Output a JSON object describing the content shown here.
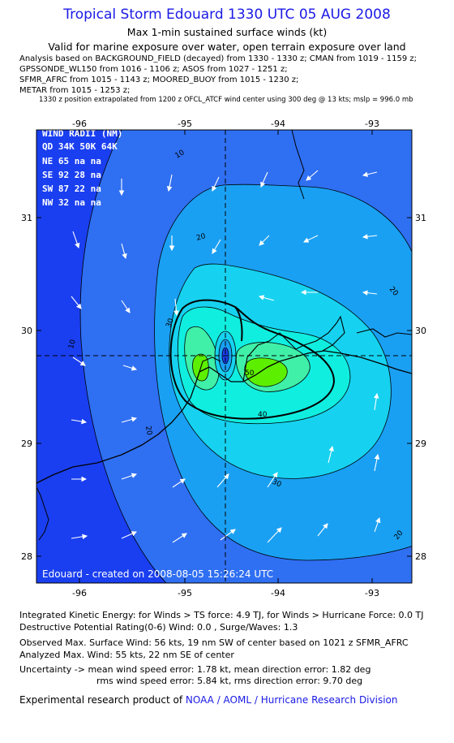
{
  "header": {
    "title": "Tropical Storm Edouard 1330 UTC 05 AUG 2008",
    "subtitle1": "Max 1-min sustained surface winds (kt)",
    "subtitle2": "Valid for marine exposure over water, open terrain exposure over land"
  },
  "analysis": {
    "line1": "Analysis based on  BACKGROUND_FIELD (decayed) from 1330 - 1330 z;  CMAN from 1019 - 1159 z;",
    "line2": "GPSSONDE_WL150 from 1016 - 1106 z;  ASOS from 1027 - 1251 z;",
    "line3": "SFMR_AFRC from 1015 - 1143 z;  MOORED_BUOY from 1015 - 1230 z;",
    "line4": "METAR from 1015 - 1253 z;",
    "position_note": "1330 z position extrapolated from 1200 z OFCL_ATCF wind center using 300 deg @ 13 kts; mslp = 996.0 mb"
  },
  "map": {
    "lon_ticks": [
      "-96",
      "-95",
      "-94",
      "-93"
    ],
    "lat_ticks": [
      "31",
      "30",
      "29",
      "28"
    ],
    "contour_labels": [
      "10",
      "20",
      "30",
      "40",
      "50",
      "10",
      "20",
      "30",
      "20",
      "10",
      "20",
      "40",
      "30"
    ],
    "wind_radii": {
      "title": "WIND RADII (NM)",
      "header": "QD 34K 50K 64K",
      "rows": [
        "NE  65  na  na",
        "SE  92  28  na",
        "SW  87  22  na",
        "NW  32  na  na"
      ]
    },
    "created": "Edouard - created on 2008-08-05 15:26:24 UTC",
    "colors": {
      "outer": "#1a3ff0",
      "band10": "#2f6ff2",
      "band20": "#1aa0f3",
      "band30": "#16d2f0",
      "band40": "#10eee0",
      "band50": "#40f0a8",
      "core": "#5cf000"
    }
  },
  "footer": {
    "line1": "Integrated Kinetic Energy:  for Winds > TS force: 4.9 TJ,  for Winds > Hurricane Force: 0.0 TJ",
    "line2": "Destructive Potential Rating(0-6)  Wind: 0.0 , Surge/Waves: 1.3",
    "line3": "Observed Max. Surface Wind: 56 kts, 19 nm SW of center based on 1021 z SFMR_AFRC",
    "line4": "Analyzed Max. Wind: 55 kts, 22 nm SE of center",
    "line5": "Uncertainty -> mean wind speed error: 1.78 kt,   mean direction error: 1.82 deg",
    "line6": "rms wind speed error: 5.84 kt,   rms direction error: 9.70 deg",
    "credit_prefix": "Experimental research product of ",
    "credit_org": "NOAA / AOML / Hurricane Research Division"
  }
}
